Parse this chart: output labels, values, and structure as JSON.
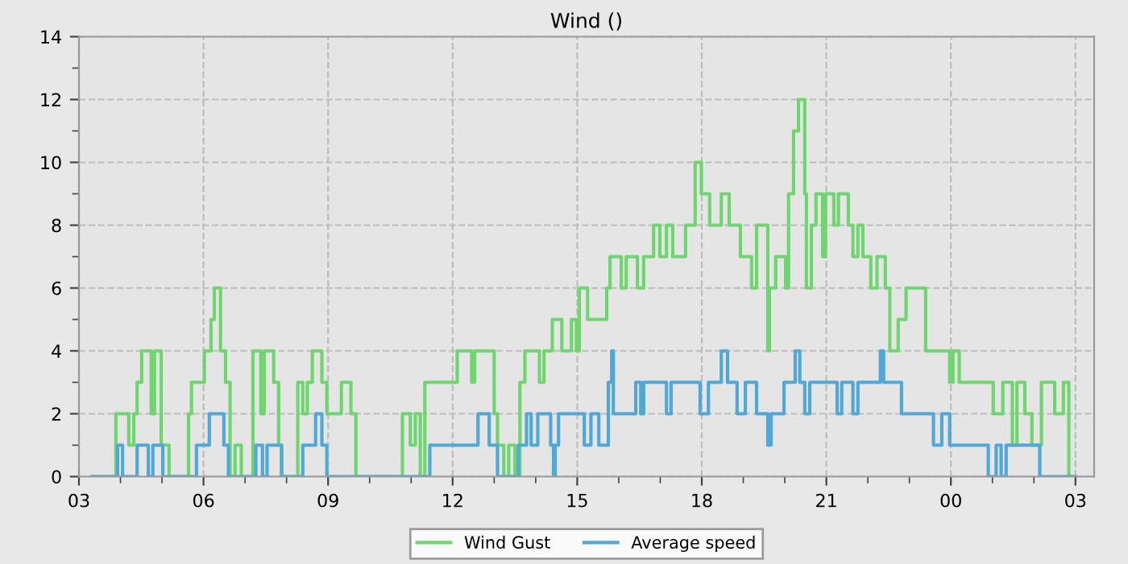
{
  "chart_data": {
    "type": "step",
    "title": "Wind ()",
    "legend": "bottom",
    "grid": true,
    "xlim": [
      3,
      27.45
    ],
    "ylim": [
      0,
      14
    ],
    "xticks": [
      {
        "value": 3,
        "label": "03"
      },
      {
        "value": 4,
        "label": null
      },
      {
        "value": 5,
        "label": null
      },
      {
        "value": 6,
        "label": "06"
      },
      {
        "value": 7,
        "label": null
      },
      {
        "value": 8,
        "label": null
      },
      {
        "value": 9,
        "label": "09"
      },
      {
        "value": 10,
        "label": null
      },
      {
        "value": 11,
        "label": null
      },
      {
        "value": 12,
        "label": "12"
      },
      {
        "value": 13,
        "label": null
      },
      {
        "value": 14,
        "label": null
      },
      {
        "value": 15,
        "label": "15"
      },
      {
        "value": 16,
        "label": null
      },
      {
        "value": 17,
        "label": null
      },
      {
        "value": 18,
        "label": "18"
      },
      {
        "value": 19,
        "label": null
      },
      {
        "value": 20,
        "label": null
      },
      {
        "value": 21,
        "label": "21"
      },
      {
        "value": 22,
        "label": null
      },
      {
        "value": 23,
        "label": null
      },
      {
        "value": 24,
        "label": "00"
      },
      {
        "value": 25,
        "label": null
      },
      {
        "value": 26,
        "label": null
      },
      {
        "value": 27,
        "label": "03"
      }
    ],
    "yticks": [
      0,
      {
        "value": 1,
        "label": null
      },
      2,
      {
        "value": 3,
        "label": null
      },
      4,
      {
        "value": 5,
        "label": null
      },
      6,
      {
        "value": 7,
        "label": null
      },
      8,
      {
        "value": 9,
        "label": null
      },
      10,
      {
        "value": 11,
        "label": null
      },
      12,
      {
        "value": 13,
        "label": null
      },
      14
    ],
    "series": [
      {
        "name": "Wind Gust",
        "color": "#6fd66f",
        "x": [
          3.31,
          3.89,
          4.2,
          4.32,
          4.4,
          4.51,
          4.74,
          4.82,
          4.98,
          5.17,
          5.64,
          5.71,
          6.02,
          6.18,
          6.26,
          6.41,
          6.53,
          6.64,
          6.76,
          6.91,
          7.19,
          7.38,
          7.46,
          7.69,
          7.81,
          7.88,
          8.27,
          8.39,
          8.5,
          8.62,
          8.85,
          8.97,
          9.32,
          9.55,
          9.67,
          10.79,
          10.98,
          11.1,
          11.22,
          11.33,
          12.11,
          12.46,
          12.53,
          13.0,
          13.08,
          13.23,
          13.35,
          13.5,
          13.62,
          13.74,
          14.09,
          14.2,
          14.4,
          14.63,
          14.86,
          14.98,
          15.05,
          15.25,
          15.71,
          15.79,
          16.06,
          16.18,
          16.45,
          16.6,
          16.84,
          16.99,
          17.15,
          17.3,
          17.61,
          17.84,
          17.99,
          18.19,
          18.47,
          18.66,
          18.93,
          19.2,
          19.32,
          19.59,
          19.63,
          19.78,
          20.02,
          20.09,
          20.21,
          20.33,
          20.48,
          20.52,
          20.64,
          20.75,
          20.91,
          20.98,
          21.18,
          21.29,
          21.53,
          21.64,
          21.76,
          21.88,
          22.07,
          22.22,
          22.42,
          22.53,
          22.73,
          22.92,
          23.39,
          23.97,
          24.05,
          24.2,
          25.02,
          25.25,
          25.48,
          25.59,
          25.78,
          25.95,
          26.18,
          26.5,
          26.71,
          26.84,
          26.99
        ],
        "values": [
          0,
          2,
          1,
          2,
          3,
          4,
          2,
          4,
          1,
          0,
          2,
          3,
          4,
          5,
          6,
          4,
          3,
          0,
          1,
          0,
          4,
          2,
          4,
          3,
          1,
          0,
          3,
          2,
          3,
          4,
          3,
          2,
          3,
          2,
          0,
          2,
          1,
          2,
          0,
          3,
          4,
          3,
          4,
          2,
          1,
          0,
          1,
          0,
          3,
          4,
          3,
          4,
          5,
          4,
          5,
          4,
          6,
          5,
          6,
          7,
          6,
          7,
          6,
          7,
          8,
          7,
          8,
          7,
          8,
          10,
          9,
          8,
          9,
          8,
          7,
          6,
          8,
          4,
          6,
          7,
          6,
          9,
          11,
          12,
          9,
          6,
          8,
          9,
          7,
          9,
          8,
          9,
          8,
          7,
          8,
          7,
          6,
          7,
          6,
          4,
          5,
          6,
          4,
          3,
          4,
          3,
          2,
          3,
          1,
          3,
          2,
          1,
          3,
          2,
          3,
          0,
          0
        ]
      },
      {
        "name": "Average speed",
        "color": "#4fa8d8",
        "x": [
          3.31,
          3.93,
          4.05,
          4.4,
          4.67,
          4.78,
          5.02,
          5.83,
          6.14,
          6.49,
          6.6,
          7.26,
          7.42,
          7.53,
          7.88,
          8.39,
          8.7,
          8.85,
          8.97,
          11.45,
          12.61,
          12.88,
          13.08,
          13.58,
          13.78,
          13.89,
          14.05,
          14.36,
          14.43,
          14.47,
          14.55,
          15.17,
          15.33,
          15.52,
          15.75,
          15.83,
          15.87,
          16.41,
          16.53,
          16.6,
          17.15,
          17.26,
          17.96,
          18.16,
          18.47,
          18.62,
          18.85,
          19.05,
          19.32,
          19.59,
          19.67,
          19.98,
          20.25,
          20.36,
          20.48,
          20.6,
          21.26,
          21.37,
          21.64,
          21.76,
          22.3,
          22.38,
          22.81,
          23.58,
          23.78,
          23.97,
          24.9,
          25.09,
          25.21,
          25.33,
          26.14,
          26.99
        ],
        "values": [
          0,
          1,
          0,
          1,
          0,
          1,
          0,
          1,
          2,
          1,
          0,
          1,
          0,
          1,
          0,
          1,
          2,
          1,
          0,
          1,
          2,
          1,
          0,
          1,
          2,
          1,
          2,
          1,
          0,
          1,
          2,
          1,
          2,
          1,
          3,
          4,
          2,
          3,
          2,
          3,
          2,
          3,
          2,
          3,
          4,
          3,
          2,
          3,
          2,
          1,
          2,
          3,
          4,
          3,
          2,
          3,
          2,
          3,
          2,
          3,
          4,
          3,
          2,
          1,
          2,
          1,
          0,
          1,
          0,
          1,
          0,
          0
        ]
      }
    ]
  }
}
